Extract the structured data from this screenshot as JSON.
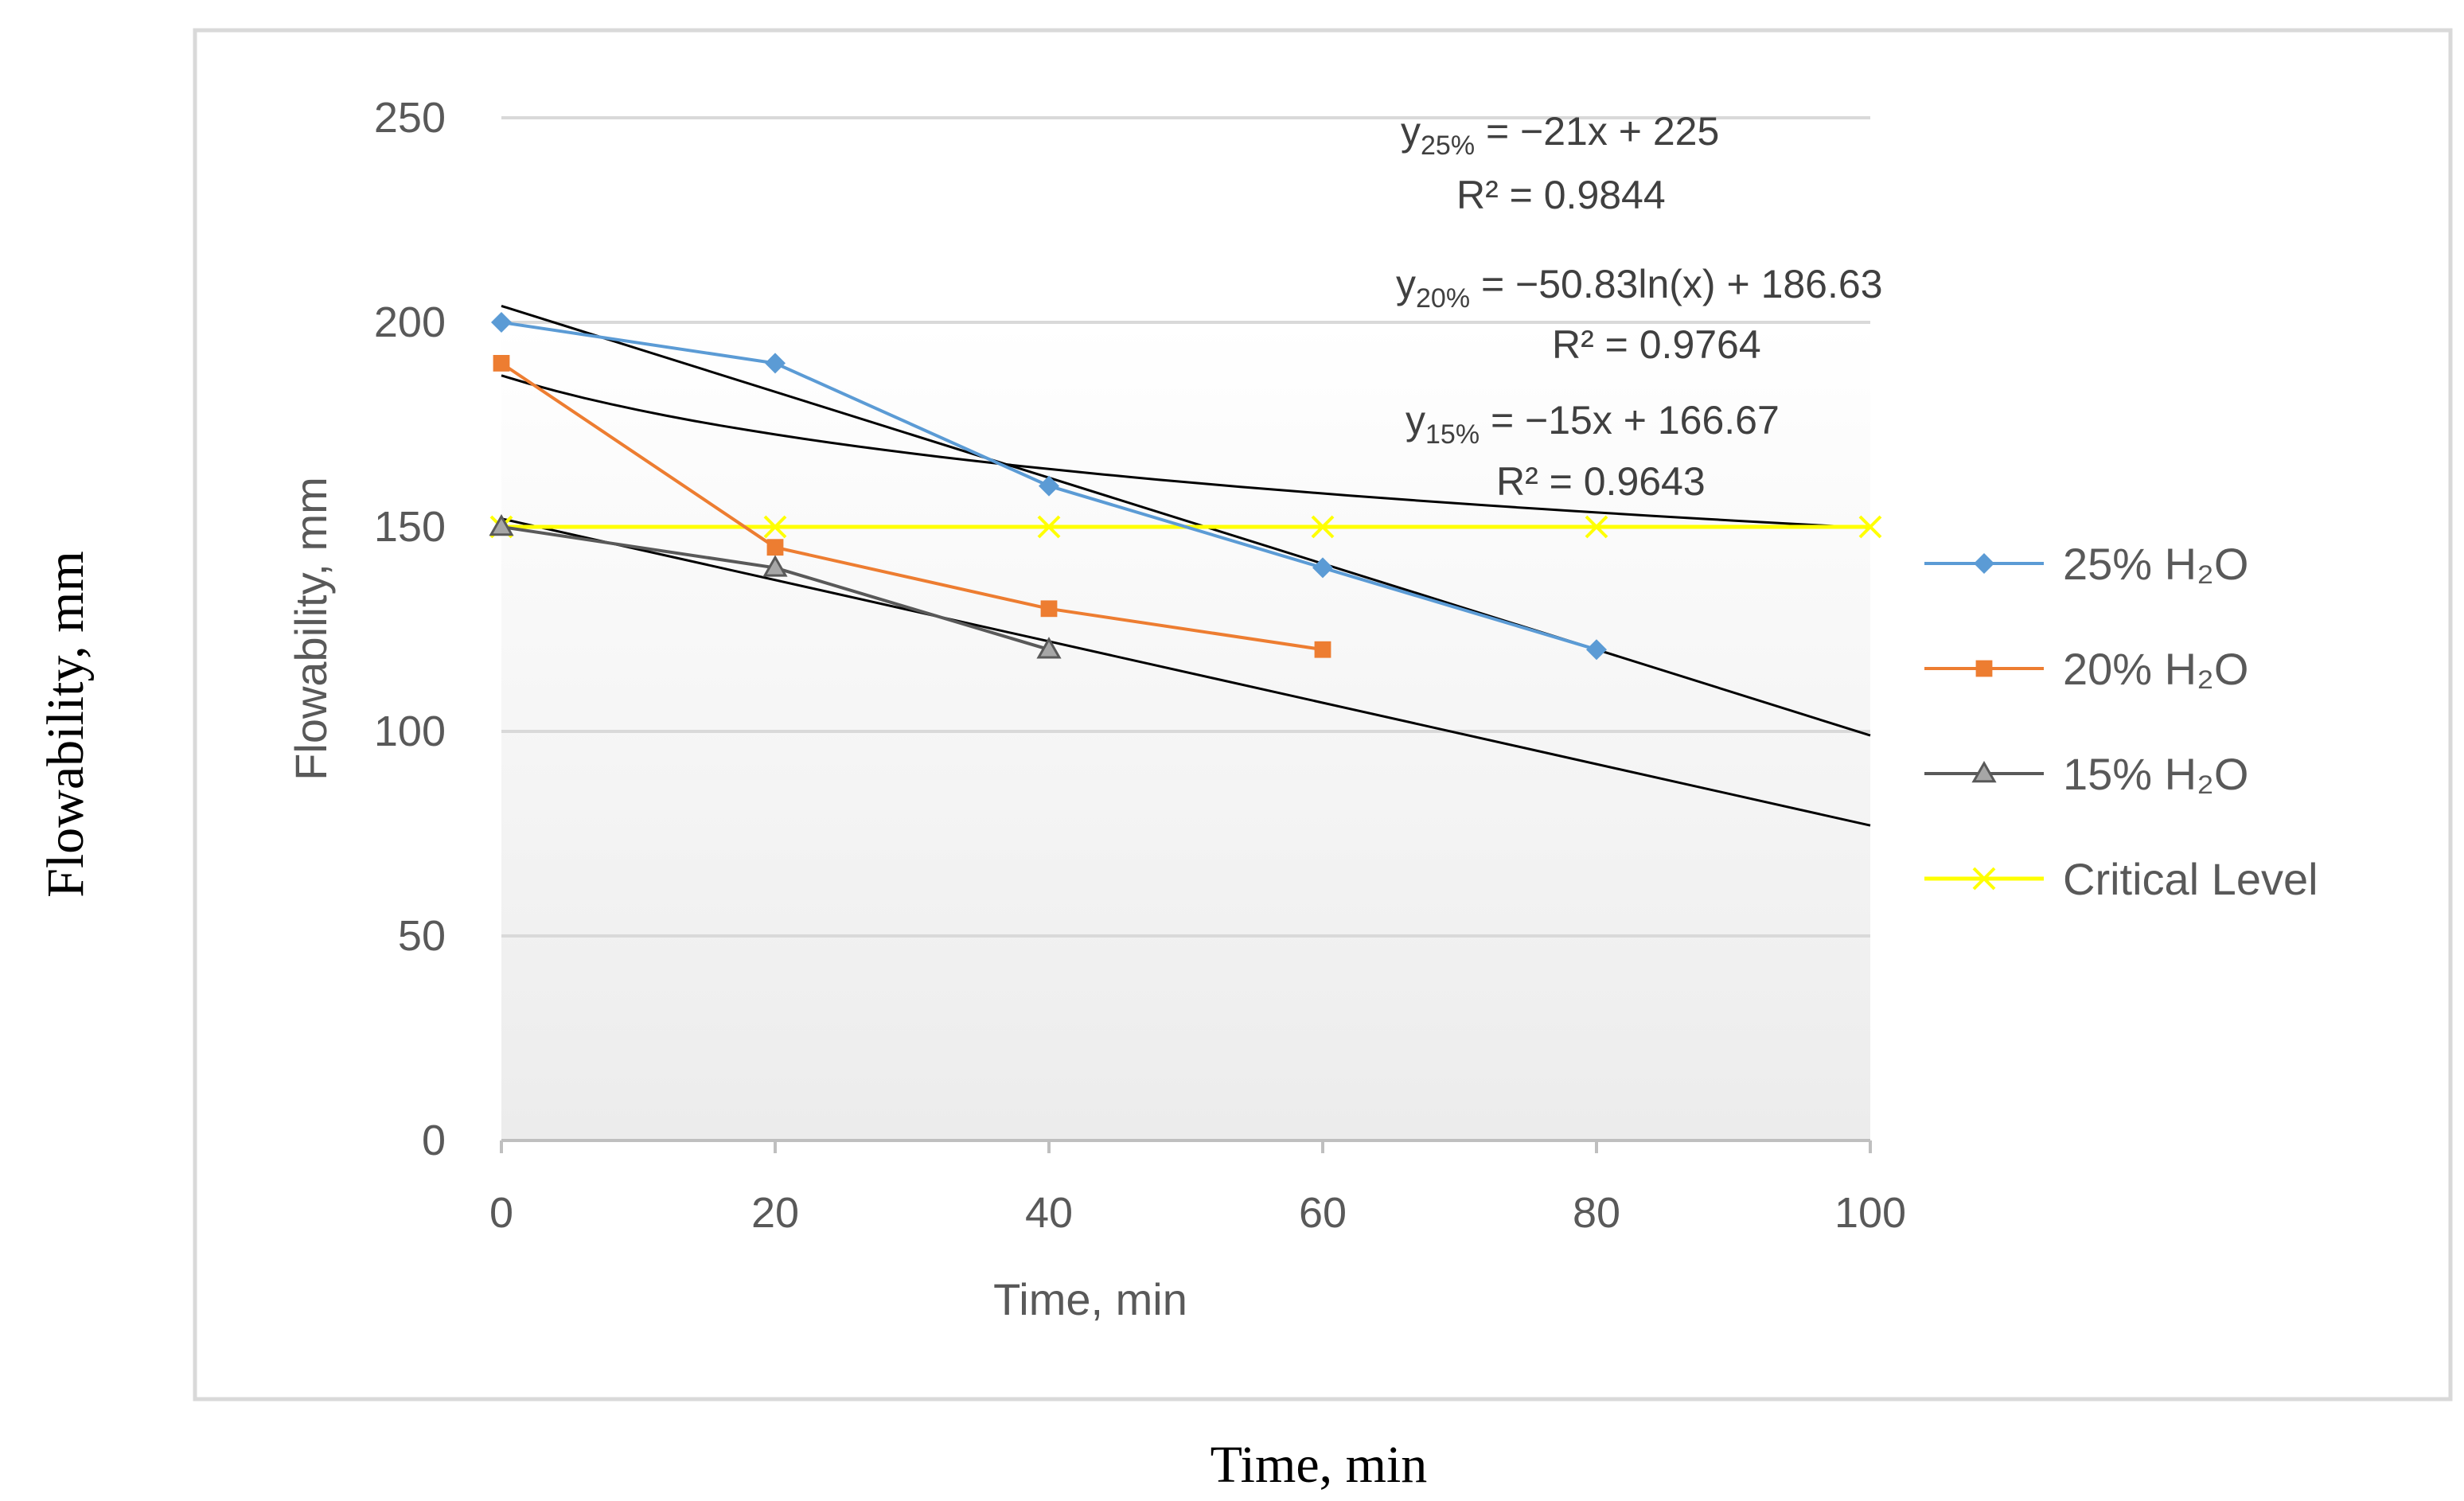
{
  "chart_data": {
    "type": "line",
    "title": "",
    "xlabel": "Time, min",
    "ylabel": "Flowability, mm",
    "outer_xlabel": "Time, min",
    "outer_ylabel": "Flowability, mm",
    "xlim": [
      0,
      100
    ],
    "ylim": [
      0,
      250
    ],
    "xticks": [
      0,
      20,
      40,
      60,
      80,
      100
    ],
    "yticks": [
      0,
      50,
      100,
      150,
      200,
      250
    ],
    "grid": "horizontal",
    "legend_position": "right",
    "series": [
      {
        "name": "25% H₂O",
        "color": "#5B9BD5",
        "marker": "diamond",
        "x": [
          0,
          20,
          40,
          60,
          80
        ],
        "y": [
          200,
          190,
          160,
          140,
          120
        ]
      },
      {
        "name": "20% H₂O",
        "color": "#ED7D31",
        "marker": "square",
        "x": [
          0,
          20,
          40,
          60
        ],
        "y": [
          190,
          145,
          130,
          120
        ]
      },
      {
        "name": "15% H₂O",
        "color": "#595959",
        "marker": "triangle",
        "x": [
          0,
          20,
          40
        ],
        "y": [
          150,
          140,
          120
        ]
      },
      {
        "name": "Critical Level",
        "color": "#FFFF00",
        "marker": "x",
        "x": [
          0,
          20,
          40,
          60,
          80,
          100
        ],
        "y": [
          150,
          150,
          150,
          150,
          150,
          150
        ]
      }
    ],
    "trendlines": [
      {
        "series": "25% H₂O",
        "type": "linear",
        "slope": -1.05,
        "intercept": 204
      },
      {
        "series": "20% H₂O",
        "type": "log",
        "a": -20.8,
        "b": 187
      },
      {
        "series": "15% H₂O",
        "type": "linear",
        "slope": -0.75,
        "intercept": 152
      }
    ],
    "annotations": [
      {
        "y_main": "y",
        "y_sub": "25%",
        "y_rest": " = −21x + 225",
        "r2": "R² = 0.9844"
      },
      {
        "y_main": "y",
        "y_sub": "20%",
        "y_rest": " = −50.83ln(x) + 186.63",
        "r2": "R² = 0.9764"
      },
      {
        "y_main": "y",
        "y_sub": "15%",
        "y_rest": " = −15x + 166.67",
        "r2": "R² = 0.9643"
      }
    ]
  }
}
